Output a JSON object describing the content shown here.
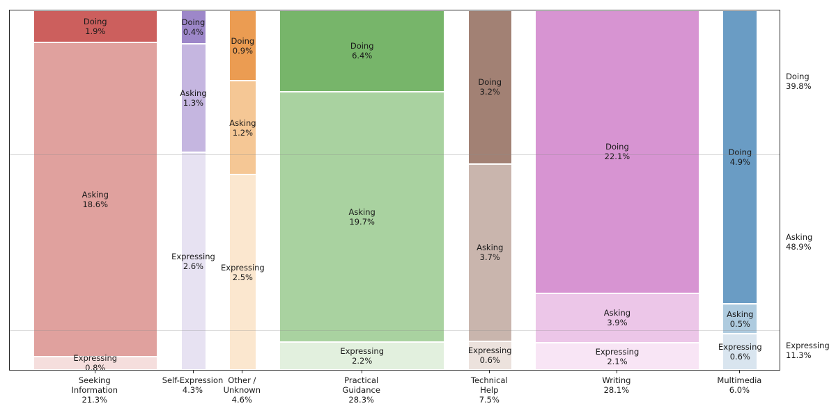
{
  "chart_data": {
    "type": "mosaic",
    "title": "",
    "xlabel": "",
    "ylabel": "",
    "grid": "two faint horizontal lines at marginal row boundaries",
    "row_label_position": "right",
    "series_order": [
      "Doing",
      "Asking",
      "Expressing"
    ],
    "categories": [
      {
        "name": "Seeking Information",
        "label_lines": [
          "Seeking",
          "Information",
          "21.3%"
        ],
        "total": 21.3,
        "segments": [
          {
            "name": "Doing",
            "value": 1.9
          },
          {
            "name": "Asking",
            "value": 18.6
          },
          {
            "name": "Expressing",
            "value": 0.8
          }
        ],
        "colors": [
          "#cc5f5d",
          "#e0a19e",
          "#f5dedd"
        ]
      },
      {
        "name": "Self-Expression",
        "label_lines": [
          "Self-Expression",
          "4.3%"
        ],
        "total": 4.3,
        "segments": [
          {
            "name": "Doing",
            "value": 0.4
          },
          {
            "name": "Asking",
            "value": 1.3
          },
          {
            "name": "Expressing",
            "value": 2.6
          }
        ],
        "colors": [
          "#9d87c9",
          "#c5b6e0",
          "#e7e2f2"
        ]
      },
      {
        "name": "Other / Unknown",
        "label_lines": [
          "Other /",
          "Unknown",
          "4.6%"
        ],
        "total": 4.6,
        "segments": [
          {
            "name": "Doing",
            "value": 0.9
          },
          {
            "name": "Asking",
            "value": 1.2
          },
          {
            "name": "Expressing",
            "value": 2.5
          }
        ],
        "colors": [
          "#eb9c52",
          "#f5c795",
          "#fbe7cf"
        ]
      },
      {
        "name": "Practical Guidance",
        "label_lines": [
          "Practical",
          "Guidance",
          "28.3%"
        ],
        "total": 28.3,
        "segments": [
          {
            "name": "Doing",
            "value": 6.4
          },
          {
            "name": "Asking",
            "value": 19.7
          },
          {
            "name": "Expressing",
            "value": 2.2
          }
        ],
        "colors": [
          "#77b56a",
          "#a9d2a0",
          "#e2f0de"
        ]
      },
      {
        "name": "Technical Help",
        "label_lines": [
          "Technical",
          "Help",
          "7.5%"
        ],
        "total": 7.5,
        "segments": [
          {
            "name": "Doing",
            "value": 3.2
          },
          {
            "name": "Asking",
            "value": 3.7
          },
          {
            "name": "Expressing",
            "value": 0.6
          }
        ],
        "colors": [
          "#a28174",
          "#c9b5ad",
          "#ece2dd"
        ]
      },
      {
        "name": "Writing",
        "label_lines": [
          "Writing",
          "28.1%"
        ],
        "total": 28.1,
        "segments": [
          {
            "name": "Doing",
            "value": 22.1
          },
          {
            "name": "Asking",
            "value": 3.9
          },
          {
            "name": "Expressing",
            "value": 2.1
          }
        ],
        "colors": [
          "#d794d2",
          "#ecc6e8",
          "#f8e5f5"
        ]
      },
      {
        "name": "Multimedia",
        "label_lines": [
          "Multimedia",
          "6.0%"
        ],
        "total": 6.0,
        "segments": [
          {
            "name": "Doing",
            "value": 4.9
          },
          {
            "name": "Asking",
            "value": 0.5
          },
          {
            "name": "Expressing",
            "value": 0.6
          }
        ],
        "colors": [
          "#6a9cc4",
          "#aecbdf",
          "#d9e5ef"
        ]
      }
    ],
    "row_totals": [
      {
        "name": "Doing",
        "value": 39.8
      },
      {
        "name": "Asking",
        "value": 48.9
      },
      {
        "name": "Expressing",
        "value": 11.3
      }
    ],
    "text_color": "#1a1a1a",
    "spine_color": "#262626"
  }
}
